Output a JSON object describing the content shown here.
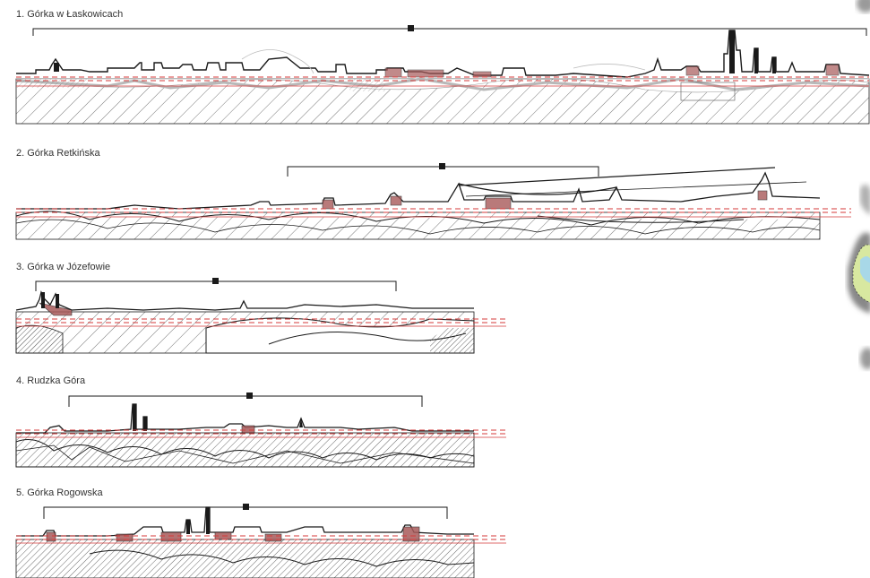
{
  "panels": [
    {
      "number": "1.",
      "title": "Górka w Łaskowicach"
    },
    {
      "number": "2.",
      "title": "Górka Retkińska"
    },
    {
      "number": "3.",
      "title": "Górka w Józefowie"
    },
    {
      "number": "4.",
      "title": "Rudzka Góra"
    },
    {
      "number": "5.",
      "title": "Górka Rogowska"
    }
  ],
  "colors": {
    "line": "#1a1a1a",
    "ground_line": "#222222",
    "red_line": "#d43a3a",
    "highlight": "#a85a5a",
    "hatch": "#8a8a8a",
    "vegetation": "#bdbdbd"
  },
  "icons": {
    "viewpoint_marker": "viewpoint-marker-icon",
    "side_map": "location-map-icon"
  }
}
